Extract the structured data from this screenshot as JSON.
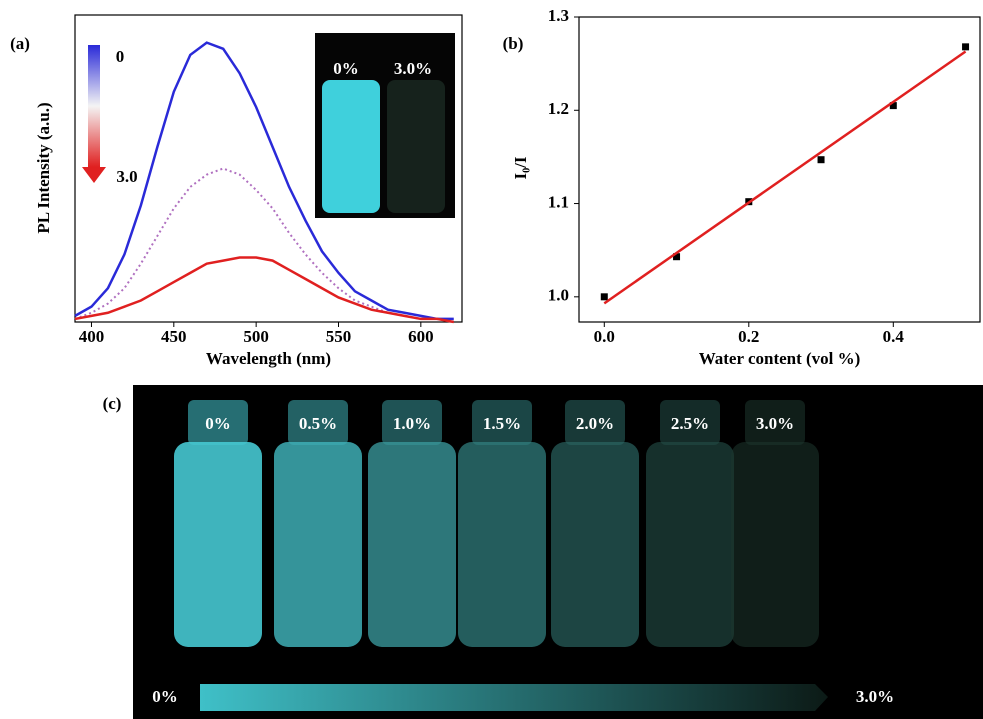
{
  "chart_data": [
    {
      "type": "line",
      "label": "(a)",
      "ylabel": "PL Intensity (a.u.)",
      "xlabel": "Wavelength (nm)",
      "annotations": [
        "0",
        "3.0"
      ],
      "inset_labels": [
        "0%",
        "3.0%"
      ],
      "x": [
        390,
        400,
        410,
        420,
        430,
        440,
        450,
        460,
        470,
        480,
        490,
        500,
        510,
        520,
        530,
        540,
        550,
        560,
        570,
        580,
        590,
        600,
        610,
        620
      ],
      "series": [
        {
          "color": "#2a2ad8",
          "dash": false,
          "values": [
            0.02,
            0.05,
            0.11,
            0.22,
            0.38,
            0.57,
            0.75,
            0.87,
            0.91,
            0.89,
            0.81,
            0.7,
            0.57,
            0.44,
            0.33,
            0.23,
            0.16,
            0.1,
            0.07,
            0.04,
            0.03,
            0.02,
            0.01,
            0.01
          ]
        },
        {
          "color": "#b070c0",
          "dash": true,
          "values": [
            0.01,
            0.03,
            0.06,
            0.11,
            0.19,
            0.28,
            0.37,
            0.44,
            0.48,
            0.5,
            0.48,
            0.43,
            0.37,
            0.29,
            0.22,
            0.16,
            0.11,
            0.07,
            0.05,
            0.03,
            0.02,
            0.01,
            0.01,
            0.0
          ]
        },
        {
          "color": "#e02020",
          "dash": false,
          "values": [
            0.01,
            0.02,
            0.03,
            0.05,
            0.07,
            0.1,
            0.13,
            0.16,
            0.19,
            0.2,
            0.21,
            0.21,
            0.2,
            0.17,
            0.14,
            0.11,
            0.08,
            0.06,
            0.04,
            0.03,
            0.02,
            0.01,
            0.01,
            0.0
          ]
        }
      ],
      "xlim": [
        390,
        625
      ],
      "xticks": [
        400,
        450,
        500,
        550,
        600
      ],
      "ylim": [
        0,
        1
      ]
    },
    {
      "type": "scatter",
      "label": "(b)",
      "ylabel": "I₀/I",
      "xlabel": "Water content (vol %)",
      "series": [
        {
          "color": "#000000",
          "marker": "square",
          "x": [
            0,
            0.1,
            0.2,
            0.3,
            0.4,
            0.5
          ],
          "values": [
            1.0,
            1.043,
            1.102,
            1.147,
            1.205,
            1.268
          ]
        },
        {
          "color": "#e02020",
          "marker": "line",
          "x": [
            0,
            0.5
          ],
          "values": [
            0.993,
            1.263
          ]
        }
      ],
      "xlim": [
        -0.035,
        0.52
      ],
      "xticks": [
        {
          "value": 0,
          "label": "0.0"
        },
        0.2,
        0.4
      ],
      "ylim": [
        0.973,
        1.3
      ],
      "yticks": [
        {
          "value": 1,
          "label": "1.0"
        },
        1.1,
        1.2,
        1.3
      ]
    }
  ],
  "photo": {
    "label": "(c)",
    "vial_labels": [
      "0%",
      "0.5%",
      "1.0%",
      "1.5%",
      "2.0%",
      "2.5%",
      "3.0%"
    ],
    "bar_labels": [
      "0%",
      "3.0%"
    ]
  }
}
